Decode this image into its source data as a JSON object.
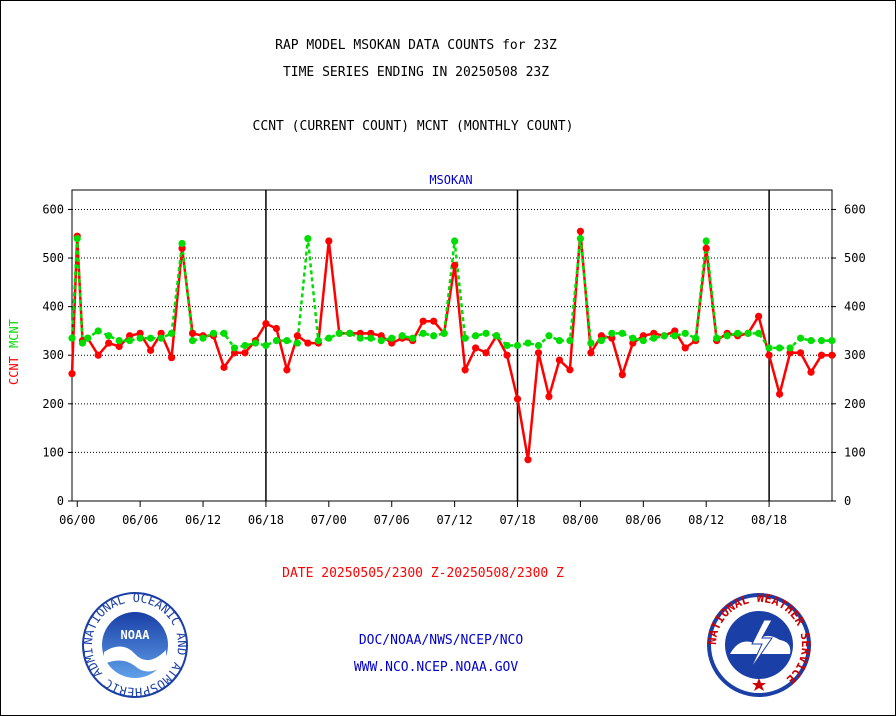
{
  "header": {
    "title_line1": "RAP MODEL MSOKAN DATA COUNTS for 23Z",
    "title_line2": "TIME SERIES ENDING IN 20250508 23Z",
    "subtitle": "CCNT (CURRENT COUNT) MCNT (MONTHLY COUNT)"
  },
  "footer": {
    "date_range": "DATE 20250505/2300 Z-20250508/2300 Z",
    "link1": "DOC/NOAA/NWS/NCEP/NCO",
    "link2": "WWW.NCO.NCEP.NOAA.GOV"
  },
  "logos": {
    "noaa_text": "NOAA",
    "noaa_ring": "NATIONAL OCEANIC AND ATMOSPHERIC ADMINISTRATION · U.S. DEPARTMENT OF COMMERCE ·",
    "nws_ring": "NATIONAL WEATHER SERVICE"
  },
  "colors": {
    "ccnt": "#ff0000",
    "mcnt": "#00dd00",
    "text_blue": "#0000cc",
    "text_red": "#ff0000"
  },
  "chart_data": {
    "type": "line",
    "title": "MSOKAN",
    "ylabel_ccnt": "CCNT",
    "ylabel_mcnt": "MCNT",
    "ylim": [
      0,
      640
    ],
    "y_ticks": [
      0,
      100,
      200,
      300,
      400,
      500,
      600
    ],
    "x_ticks": [
      "06/00",
      "06/06",
      "06/12",
      "06/18",
      "07/00",
      "07/06",
      "07/12",
      "07/18",
      "08/00",
      "08/06",
      "08/12",
      "08/18"
    ],
    "x_tick_hours": [
      0,
      6,
      12,
      18,
      24,
      30,
      36,
      42,
      48,
      54,
      60,
      66
    ],
    "day_boundaries_hours": [
      18,
      42,
      66
    ],
    "grid": true,
    "series": [
      {
        "name": "CCNT",
        "x_hours": [
          -0.5,
          0,
          0.5,
          1,
          2,
          3,
          4,
          5,
          6,
          7,
          8,
          9,
          10,
          11,
          12,
          13,
          14,
          15,
          16,
          17,
          18,
          19,
          20,
          21,
          22,
          23,
          24,
          25,
          26,
          27,
          28,
          29,
          30,
          31,
          32,
          33,
          34,
          35,
          36,
          37,
          38,
          39,
          40,
          41,
          42,
          43,
          44,
          45,
          46,
          47,
          48,
          49,
          50,
          51,
          52,
          53,
          54,
          55,
          56,
          57,
          58,
          59,
          60,
          61,
          62,
          63,
          64,
          65,
          66,
          67,
          68,
          69,
          70,
          71,
          72
        ],
        "values": [
          262,
          545,
          330,
          335,
          300,
          325,
          318,
          340,
          345,
          310,
          345,
          295,
          520,
          345,
          340,
          340,
          275,
          305,
          305,
          330,
          365,
          355,
          270,
          340,
          325,
          325,
          535,
          345,
          345,
          345,
          345,
          340,
          325,
          335,
          330,
          370,
          370,
          345,
          485,
          270,
          315,
          305,
          340,
          300,
          210,
          85,
          305,
          215,
          290,
          270,
          555,
          305,
          340,
          335,
          260,
          325,
          340,
          345,
          340,
          350,
          315,
          330,
          520,
          330,
          345,
          340,
          345,
          380,
          300,
          220,
          305,
          305,
          265,
          300,
          300
        ]
      },
      {
        "name": "MCNT",
        "x_hours": [
          -0.5,
          0,
          0.5,
          1,
          2,
          3,
          4,
          5,
          6,
          7,
          8,
          9,
          10,
          11,
          12,
          13,
          14,
          15,
          16,
          17,
          18,
          19,
          20,
          21,
          22,
          23,
          24,
          25,
          26,
          27,
          28,
          29,
          30,
          31,
          32,
          33,
          34,
          35,
          36,
          37,
          38,
          39,
          40,
          41,
          42,
          43,
          44,
          45,
          46,
          47,
          48,
          49,
          50,
          51,
          52,
          53,
          54,
          55,
          56,
          57,
          58,
          59,
          60,
          61,
          62,
          63,
          64,
          65,
          66,
          67,
          68,
          69,
          70,
          71,
          72
        ],
        "values": [
          335,
          540,
          325,
          335,
          350,
          340,
          330,
          330,
          335,
          335,
          335,
          345,
          530,
          330,
          335,
          345,
          345,
          315,
          320,
          325,
          320,
          330,
          330,
          325,
          540,
          330,
          335,
          345,
          345,
          335,
          335,
          330,
          335,
          340,
          335,
          345,
          340,
          345,
          535,
          335,
          340,
          345,
          340,
          320,
          320,
          325,
          320,
          340,
          330,
          330,
          540,
          325,
          330,
          345,
          345,
          335,
          330,
          335,
          340,
          340,
          345,
          335,
          535,
          335,
          340,
          345,
          345,
          345,
          315,
          315,
          315,
          335,
          330,
          330,
          330
        ]
      }
    ]
  }
}
